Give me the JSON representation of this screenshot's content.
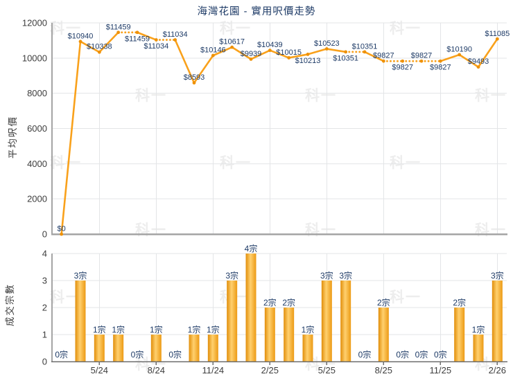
{
  "watermark": {
    "text": "科一",
    "color": "#EDEDED"
  },
  "colors": {
    "line": "#F9A11B",
    "marker": "#EE9108",
    "bar_edge": "#E18E0A",
    "bar_center": "#FFD06E",
    "bar_edge_right": "#EC9A14",
    "data_label_navy": "#1D3A66",
    "axis_text": "#3D3D3D",
    "grid": "#E3E5E7",
    "axis_line": "#A4A4A4",
    "title": "#1D3A66"
  },
  "chart_data": [
    {
      "type": "line",
      "title": "海灣花園 - 實用呎價走勢",
      "ylabel": "平均呎價",
      "ylim": [
        0,
        12000
      ],
      "yticks": [
        0,
        2000,
        4000,
        6000,
        8000,
        10000,
        12000
      ],
      "grid": true,
      "legend": "none",
      "n_points": 24,
      "values": [
        0,
        10940,
        10338,
        11459,
        11459,
        11034,
        11034,
        8593,
        10146,
        10617,
        9939,
        10439,
        10015,
        10213,
        10523,
        10351,
        10351,
        9827,
        9827,
        9827,
        9827,
        10190,
        9493,
        11085
      ],
      "point_labels": [
        "$0",
        "$10940",
        "$10338",
        "$11459",
        "$11459",
        "$11034",
        "$11034",
        "$8593",
        "$10146",
        "$10617",
        "$9939",
        "$10439",
        "$10015",
        "$10213",
        "$10523",
        "$10351",
        "$10351",
        "$9827",
        "$9827",
        "$9827",
        "$9827",
        "$10190",
        "$9493",
        "$11085"
      ],
      "label_side": [
        "above",
        "above",
        "above",
        "above",
        "below",
        "below",
        "above",
        "above",
        "above",
        "above",
        "above",
        "above",
        "above",
        "below",
        "above",
        "below",
        "above",
        "above",
        "below",
        "above",
        "below",
        "above",
        "above",
        "above"
      ],
      "carried_no_transaction": [
        false,
        false,
        false,
        false,
        true,
        false,
        true,
        false,
        false,
        false,
        false,
        false,
        false,
        false,
        false,
        false,
        true,
        false,
        true,
        true,
        true,
        false,
        false,
        false
      ],
      "shares_x_axis_with": "transactions-bar-chart"
    },
    {
      "type": "bar",
      "ylabel": "成交宗數",
      "ylim": [
        0,
        4
      ],
      "yticks": [
        0,
        1,
        2,
        3,
        4
      ],
      "grid": true,
      "legend": "none",
      "n_points": 24,
      "values": [
        0,
        3,
        1,
        1,
        0,
        1,
        0,
        1,
        1,
        3,
        4,
        2,
        2,
        1,
        3,
        3,
        0,
        2,
        0,
        0,
        0,
        2,
        1,
        3
      ],
      "bar_labels": [
        "0宗",
        "3宗",
        "1宗",
        "1宗",
        "0宗",
        "1宗",
        "0宗",
        "1宗",
        "1宗",
        "3宗",
        "4宗",
        "2宗",
        "2宗",
        "1宗",
        "3宗",
        "3宗",
        "0宗",
        "2宗",
        "0宗",
        "0宗",
        "0宗",
        "2宗",
        "1宗",
        "3宗"
      ],
      "x_tick_labels": [
        "5/24",
        "8/24",
        "11/24",
        "2/25",
        "5/25",
        "8/25",
        "11/25",
        "2/26"
      ],
      "x_tick_indices": [
        2,
        5,
        8,
        11,
        14,
        17,
        20,
        23
      ]
    }
  ]
}
